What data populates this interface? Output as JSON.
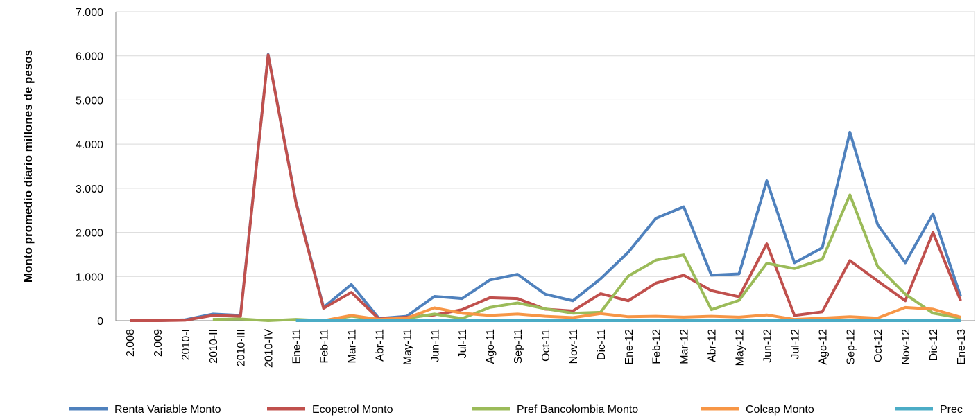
{
  "chart_data": {
    "type": "line",
    "y_label": "Monto promedio diario millones de pesos",
    "categories": [
      "2.008",
      "2.009",
      "2010-I",
      "2010-II",
      "2010-III",
      "2010-IV",
      "Ene-11",
      "Feb-11",
      "Mar-11",
      "Abr-11",
      "May-11",
      "Jun-11",
      "Jul-11",
      "Ago-11",
      "Sep-11",
      "Oct-11",
      "Nov-11",
      "Dic-11",
      "Ene-12",
      "Feb-12",
      "Mar-12",
      "Abr-12",
      "May-12",
      "Jun-12",
      "Jul-12",
      "Ago-12",
      "Sep-12",
      "Oct-12",
      "Nov-12",
      "Dic-12",
      "Ene-13"
    ],
    "series": [
      {
        "name": "Renta Variable Monto",
        "color": "#4f81bd",
        "values": [
          0,
          0,
          20,
          150,
          120,
          6030,
          2700,
          300,
          820,
          50,
          100,
          550,
          500,
          920,
          1050,
          600,
          450,
          950,
          1550,
          2320,
          2580,
          1030,
          1060,
          3170,
          1310,
          1650,
          4270,
          2180,
          1310,
          2420,
          550
        ]
      },
      {
        "name": "Ecopetrol Monto",
        "color": "#c0504d",
        "values": [
          0,
          0,
          10,
          120,
          100,
          6020,
          2680,
          280,
          640,
          40,
          80,
          130,
          250,
          520,
          500,
          260,
          220,
          610,
          450,
          850,
          1030,
          680,
          540,
          1740,
          120,
          200,
          1360,
          900,
          450,
          2000,
          450
        ]
      },
      {
        "name": "Pref Bancolombia Monto",
        "color": "#9bbb59",
        "values": [
          null,
          null,
          null,
          30,
          40,
          0,
          30,
          0,
          100,
          20,
          50,
          150,
          50,
          300,
          400,
          270,
          170,
          190,
          1010,
          1370,
          1490,
          250,
          460,
          1300,
          1180,
          1390,
          2850,
          1230,
          600,
          170,
          60
        ]
      },
      {
        "name": "Colcap Monto",
        "color": "#f79646",
        "values": [
          null,
          null,
          null,
          null,
          null,
          null,
          null,
          0,
          120,
          30,
          60,
          290,
          170,
          120,
          150,
          100,
          70,
          160,
          90,
          100,
          80,
          100,
          80,
          130,
          30,
          60,
          90,
          60,
          300,
          260,
          80
        ]
      },
      {
        "name": "Prec",
        "color": "#4bacc6",
        "values": [
          null,
          null,
          null,
          null,
          null,
          null,
          0,
          0,
          0,
          0,
          0,
          0,
          0,
          0,
          0,
          0,
          0,
          0,
          0,
          0,
          0,
          0,
          0,
          0,
          0,
          0,
          0,
          0,
          0,
          0,
          0
        ]
      }
    ],
    "ylim": [
      0,
      7000
    ],
    "yticks": [
      0,
      {
        "value": 1000,
        "label": "1.000"
      },
      {
        "value": 2000,
        "label": "2.000"
      },
      {
        "value": 3000,
        "label": "3.000"
      },
      {
        "value": 4000,
        "label": "4.000"
      },
      {
        "value": 5000,
        "label": "5.000"
      },
      {
        "value": 6000,
        "label": "6.000"
      },
      {
        "value": 7000,
        "label": "7.000"
      }
    ],
    "grid": true,
    "legend": "bottom"
  }
}
